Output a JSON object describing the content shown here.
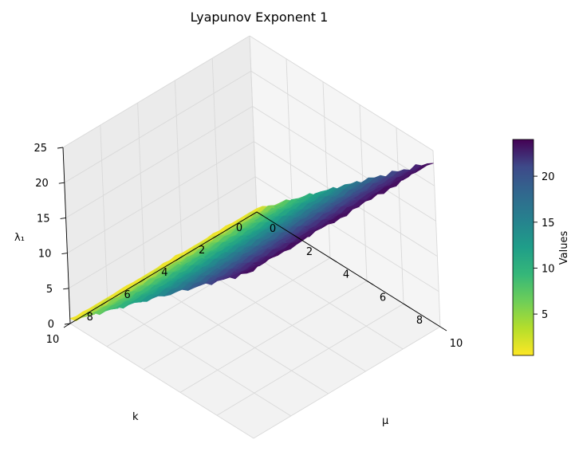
{
  "chart_data": {
    "type": "surface3d",
    "title": "Lyapunov Exponent 1",
    "xlabel": "μ",
    "ylabel": "k",
    "zlabel": "λ₁",
    "xlim": [
      0,
      10
    ],
    "ylim": [
      0,
      10
    ],
    "zlim": [
      0,
      25
    ],
    "xticks": [
      "0",
      "2",
      "4",
      "6",
      "8",
      "10"
    ],
    "yticks": [
      "0",
      "2",
      "4",
      "6",
      "8",
      "10"
    ],
    "zticks": [
      "0",
      "5",
      "10",
      "15",
      "20",
      "25"
    ],
    "surface": {
      "mu_range": [
        0,
        10
      ],
      "k_range": [
        0,
        10
      ],
      "grid_resolution": 30,
      "model": "λ₁ ≈ 2.3·μ + 0.4 (roughly independent of k)",
      "min_value": 0.5,
      "max_value": 24
    },
    "colormap": "viridis_r",
    "colorbar": {
      "label": "Values",
      "ticks": [
        "5",
        "10",
        "15",
        "20"
      ],
      "range": [
        0.5,
        24
      ]
    },
    "grid": true
  }
}
